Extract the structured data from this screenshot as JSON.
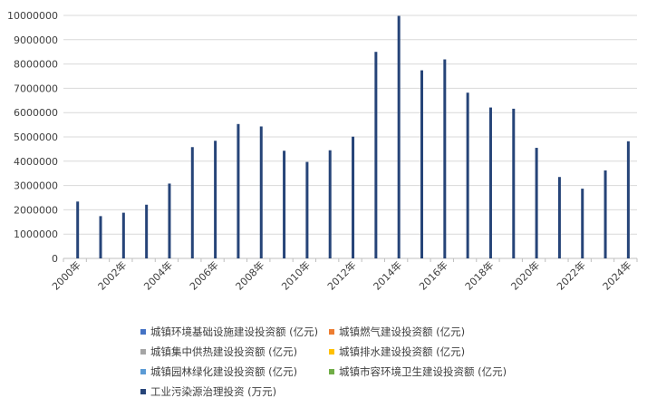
{
  "chart_data": {
    "type": "bar",
    "categories": [
      "2000年",
      "2001年",
      "2002年",
      "2003年",
      "2004年",
      "2005年",
      "2006年",
      "2007年",
      "2008年",
      "2009年",
      "2010年",
      "2011年",
      "2012年",
      "2013年",
      "2014年",
      "2015年",
      "2016年",
      "2017年",
      "2018年",
      "2019年",
      "2020年",
      "2021年",
      "2022年",
      "2023年",
      "2024年"
    ],
    "x_tick_labels": [
      "2000年",
      "2002年",
      "2004年",
      "2006年",
      "2008年",
      "2010年",
      "2012年",
      "2014年",
      "2016年",
      "2018年",
      "2020年",
      "2022年",
      "2024年"
    ],
    "y_tick_labels": [
      "0",
      "1000000",
      "2000000",
      "3000000",
      "4000000",
      "5000000",
      "6000000",
      "7000000",
      "8000000",
      "9000000",
      "10000000"
    ],
    "ylim": [
      0,
      10000000
    ],
    "grid": true,
    "legend_position": "bottom",
    "series": [
      {
        "name": "城镇环境基础设施建设投资额 (亿元)",
        "color": "#4472c4",
        "values": [
          null,
          null,
          null,
          null,
          null,
          null,
          null,
          null,
          null,
          null,
          null,
          null,
          null,
          null,
          null,
          null,
          null,
          null,
          null,
          null,
          null,
          null,
          null,
          null,
          null
        ]
      },
      {
        "name": "城镇燃气建设投资额 (亿元)",
        "color": "#ed7d31",
        "values": [
          null,
          null,
          null,
          null,
          null,
          null,
          null,
          null,
          null,
          null,
          null,
          null,
          null,
          null,
          null,
          null,
          null,
          null,
          null,
          null,
          null,
          null,
          null,
          null,
          null
        ]
      },
      {
        "name": "城镇集中供热建设投资额 (亿元)",
        "color": "#a5a5a5",
        "values": [
          null,
          null,
          null,
          null,
          null,
          null,
          null,
          null,
          null,
          null,
          null,
          null,
          null,
          null,
          null,
          null,
          null,
          null,
          null,
          null,
          null,
          null,
          null,
          null,
          null
        ]
      },
      {
        "name": "城镇排水建设投资额 (亿元)",
        "color": "#ffc000",
        "values": [
          null,
          null,
          null,
          null,
          null,
          null,
          null,
          null,
          null,
          null,
          null,
          null,
          null,
          null,
          null,
          null,
          null,
          null,
          null,
          null,
          null,
          null,
          null,
          null,
          null
        ]
      },
      {
        "name": "城镇园林绿化建设投资额 (亿元)",
        "color": "#5b9bd5",
        "values": [
          null,
          null,
          null,
          null,
          null,
          null,
          null,
          null,
          null,
          null,
          null,
          null,
          null,
          null,
          null,
          null,
          null,
          null,
          null,
          null,
          null,
          null,
          null,
          null,
          null
        ]
      },
      {
        "name": "城镇市容环境卫生建设投资额 (亿元)",
        "color": "#70ad47",
        "values": [
          null,
          null,
          null,
          null,
          null,
          null,
          null,
          null,
          null,
          null,
          null,
          null,
          null,
          null,
          null,
          null,
          null,
          null,
          null,
          null,
          null,
          null,
          null,
          null,
          null
        ]
      },
      {
        "name": "工业污染源治理投资 (万元)",
        "color": "#264478",
        "values": [
          2340000,
          1740000,
          1880000,
          2210000,
          3080000,
          4580000,
          4840000,
          5530000,
          5430000,
          4430000,
          3970000,
          4450000,
          5010000,
          8500000,
          9980000,
          7740000,
          8190000,
          6820000,
          6210000,
          6160000,
          4550000,
          3350000,
          2870000,
          3620000,
          4820000
        ]
      }
    ]
  }
}
